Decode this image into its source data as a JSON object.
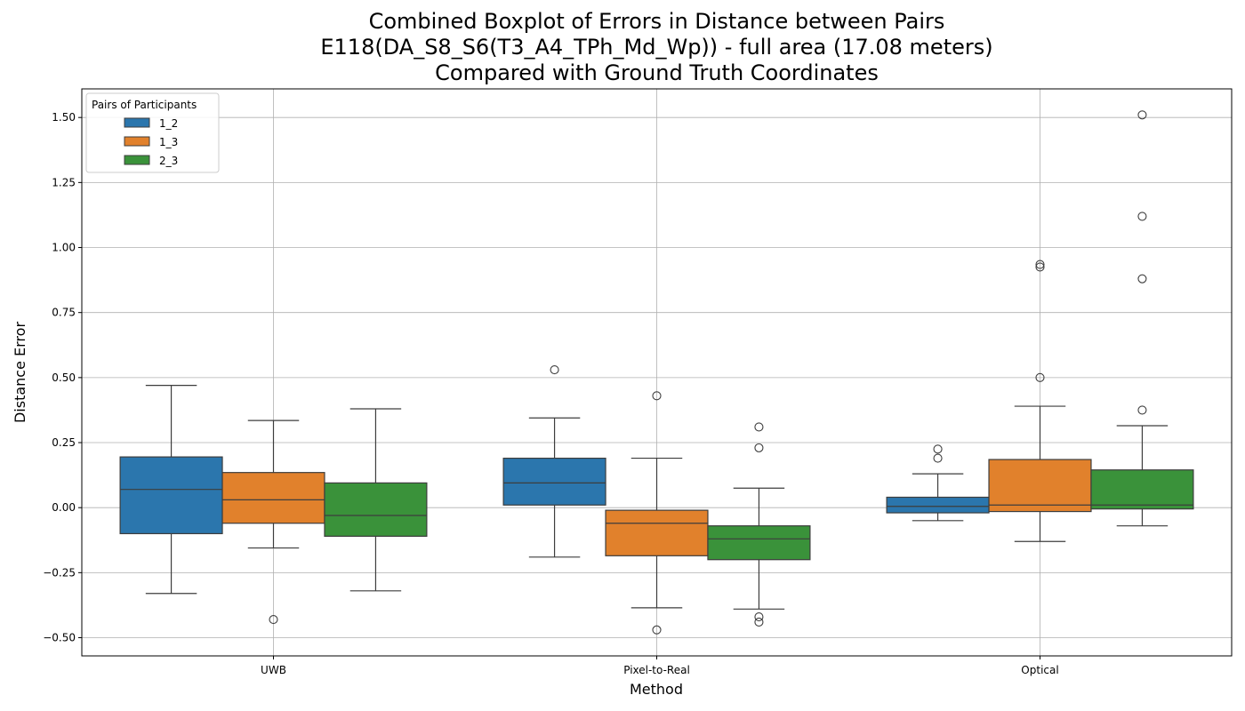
{
  "chart_data": {
    "type": "boxplot",
    "title_lines": [
      "Combined Boxplot of Errors in Distance between Pairs",
      "E118(DA_S8_S6(T3_A4_TPh_Md_Wp)) - full area (17.08 meters)",
      "Compared with Ground Truth Coordinates"
    ],
    "xlabel": "Method",
    "ylabel": "Distance Error",
    "categories": [
      "UWB",
      "Pixel-to-Real",
      "Optical"
    ],
    "ylim": [
      -0.57,
      1.61
    ],
    "yticks": [
      -0.5,
      -0.25,
      0.0,
      0.25,
      0.5,
      0.75,
      1.0,
      1.25,
      1.5
    ],
    "ytick_labels": [
      "−0.50",
      "−0.25",
      "0.00",
      "0.25",
      "0.50",
      "0.75",
      "1.00",
      "1.25",
      "1.50"
    ],
    "grid": true,
    "legend": {
      "title": "Pairs of Participants",
      "placement": "top-left"
    },
    "series": [
      {
        "name": "1_2",
        "color": "#2b76ad",
        "boxes": [
          {
            "category": "UWB",
            "whisker_low": -0.33,
            "q1": -0.1,
            "median": 0.07,
            "q3": 0.195,
            "whisker_high": 0.47,
            "outliers": []
          },
          {
            "category": "Pixel-to-Real",
            "whisker_low": -0.19,
            "q1": 0.01,
            "median": 0.095,
            "q3": 0.19,
            "whisker_high": 0.345,
            "outliers": [
              0.53
            ]
          },
          {
            "category": "Optical",
            "whisker_low": -0.05,
            "q1": -0.02,
            "median": 0.005,
            "q3": 0.04,
            "whisker_high": 0.13,
            "outliers": [
              0.19,
              0.225
            ]
          }
        ]
      },
      {
        "name": "1_3",
        "color": "#e1812c",
        "boxes": [
          {
            "category": "UWB",
            "whisker_low": -0.155,
            "q1": -0.06,
            "median": 0.03,
            "q3": 0.135,
            "whisker_high": 0.335,
            "outliers": [
              -0.43
            ]
          },
          {
            "category": "Pixel-to-Real",
            "whisker_low": -0.385,
            "q1": -0.185,
            "median": -0.06,
            "q3": -0.01,
            "whisker_high": 0.19,
            "outliers": [
              0.43,
              -0.47
            ]
          },
          {
            "category": "Optical",
            "whisker_low": -0.13,
            "q1": -0.015,
            "median": 0.01,
            "q3": 0.185,
            "whisker_high": 0.39,
            "outliers": [
              0.5,
              0.925,
              0.935
            ]
          }
        ]
      },
      {
        "name": "2_3",
        "color": "#3a923a",
        "boxes": [
          {
            "category": "UWB",
            "whisker_low": -0.32,
            "q1": -0.11,
            "median": -0.03,
            "q3": 0.095,
            "whisker_high": 0.38,
            "outliers": []
          },
          {
            "category": "Pixel-to-Real",
            "whisker_low": -0.39,
            "q1": -0.2,
            "median": -0.12,
            "q3": -0.07,
            "whisker_high": 0.075,
            "outliers": [
              0.31,
              0.23,
              -0.42,
              -0.44
            ]
          },
          {
            "category": "Optical",
            "whisker_low": -0.07,
            "q1": -0.005,
            "median": 0.01,
            "q3": 0.145,
            "whisker_high": 0.315,
            "outliers": [
              0.375,
              0.88,
              1.12,
              1.51
            ]
          }
        ]
      }
    ]
  }
}
